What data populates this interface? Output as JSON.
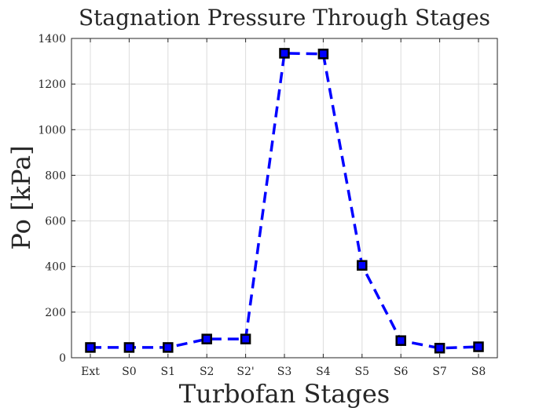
{
  "chart_data": {
    "type": "line",
    "title": "Stagnation Pressure Through Stages",
    "xlabel": "Turbofan Stages",
    "ylabel": "Po [kPa]",
    "categories": [
      "Ext",
      "S0",
      "S1",
      "S2",
      "S2'",
      "S3",
      "S4",
      "S5",
      "S6",
      "S7",
      "S8"
    ],
    "series": [
      {
        "values": [
          45,
          45,
          45,
          82,
          82,
          1335,
          1332,
          405,
          75,
          42,
          48
        ],
        "color": "#0000ff",
        "marker_face_color": "#0000ff",
        "marker_edge_color": "#000000",
        "marker": "square",
        "line_style": "dashed"
      }
    ],
    "ylim": [
      0,
      1400
    ],
    "yticks": [
      0,
      200,
      400,
      600,
      800,
      1000,
      1200,
      1400
    ],
    "grid": true
  }
}
